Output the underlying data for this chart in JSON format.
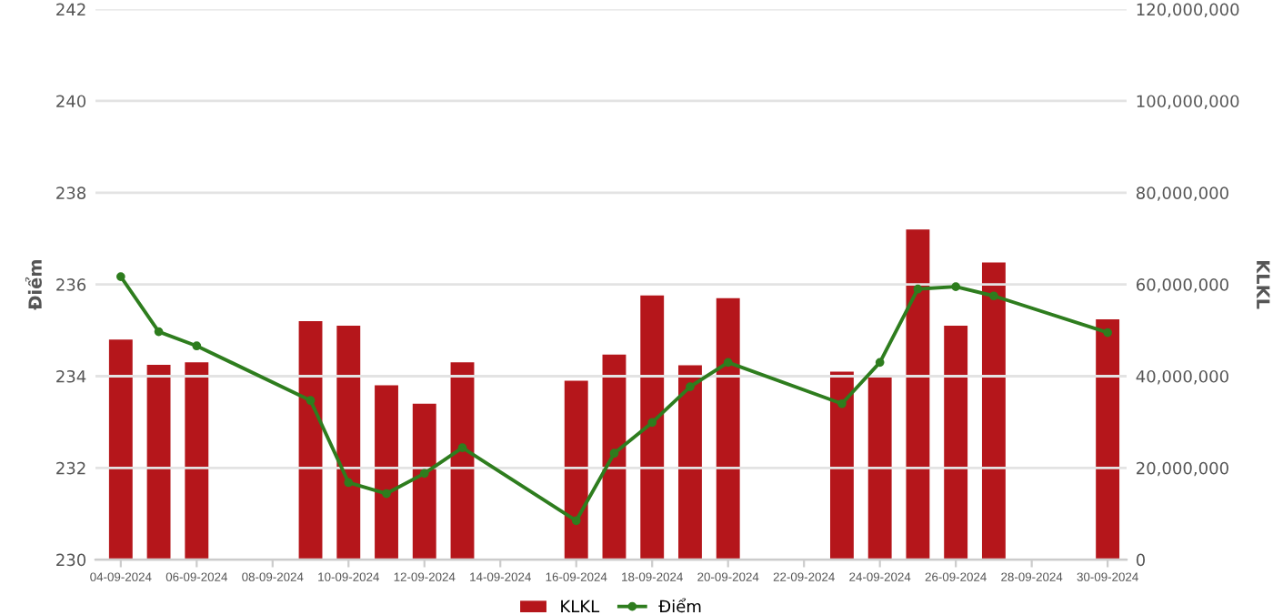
{
  "chart_data": {
    "type": "bar",
    "ylabel": "Điểm",
    "y2label": "KLKL",
    "x": [
      "2024-09-04",
      "2024-09-05",
      "2024-09-06",
      "2024-09-09",
      "2024-09-10",
      "2024-09-11",
      "2024-09-12",
      "2024-09-13",
      "2024-09-16",
      "2024-09-17",
      "2024-09-18",
      "2024-09-19",
      "2024-09-20",
      "2024-09-23",
      "2024-09-24",
      "2024-09-25",
      "2024-09-26",
      "2024-09-27",
      "2024-09-30"
    ],
    "series": [
      {
        "name": "KLKL",
        "axis": "y2",
        "color": "#b5161b",
        "values": [
          48000000,
          42500000,
          43000000,
          52000000,
          51000000,
          38000000,
          34000000,
          43000000,
          39000000,
          44700000,
          57600000,
          42400000,
          57000000,
          41000000,
          40000000,
          72000000,
          51000000,
          64800000,
          52400000
        ]
      },
      {
        "name": "Điểm",
        "type": "line",
        "color": "#2e7d1e",
        "marker": "circle",
        "values": [
          236.17,
          234.97,
          234.66,
          233.47,
          231.68,
          231.44,
          231.88,
          232.44,
          230.85,
          232.32,
          232.99,
          233.77,
          234.3,
          233.4,
          234.3,
          235.9,
          235.95,
          235.75,
          234.95
        ]
      }
    ],
    "xlim": [
      "2024-09-03T08:00",
      "2024-09-30T12:00"
    ],
    "xticks": [
      {
        "value": "2024-09-04",
        "label": "04-09-2024"
      },
      {
        "value": "2024-09-06",
        "label": "06-09-2024"
      },
      {
        "value": "2024-09-08",
        "label": "08-09-2024"
      },
      {
        "value": "2024-09-10",
        "label": "10-09-2024"
      },
      {
        "value": "2024-09-12",
        "label": "12-09-2024"
      },
      {
        "value": "2024-09-14",
        "label": "14-09-2024"
      },
      {
        "value": "2024-09-16",
        "label": "16-09-2024"
      },
      {
        "value": "2024-09-18",
        "label": "18-09-2024"
      },
      {
        "value": "2024-09-20",
        "label": "20-09-2024"
      },
      {
        "value": "2024-09-22",
        "label": "22-09-2024"
      },
      {
        "value": "2024-09-24",
        "label": "24-09-2024"
      },
      {
        "value": "2024-09-26",
        "label": "26-09-2024"
      },
      {
        "value": "2024-09-28",
        "label": "28-09-2024"
      },
      {
        "value": "2024-09-30",
        "label": "30-09-2024"
      }
    ],
    "ylim": [
      230,
      242
    ],
    "yticks": [
      230,
      232,
      234,
      236,
      238,
      240,
      242
    ],
    "y2lim": [
      0,
      120000000
    ],
    "y2ticks": [
      {
        "value": 0,
        "label": "0"
      },
      {
        "value": 20000000,
        "label": "20,000,000"
      },
      {
        "value": 40000000,
        "label": "40,000,000"
      },
      {
        "value": 60000000,
        "label": "60,000,000"
      },
      {
        "value": 80000000,
        "label": "80,000,000"
      },
      {
        "value": 100000000,
        "label": "100,000,000"
      },
      {
        "value": 120000000,
        "label": "120,000,000"
      }
    ],
    "grid": "y",
    "legend": "bottom",
    "line_style": "solid"
  }
}
